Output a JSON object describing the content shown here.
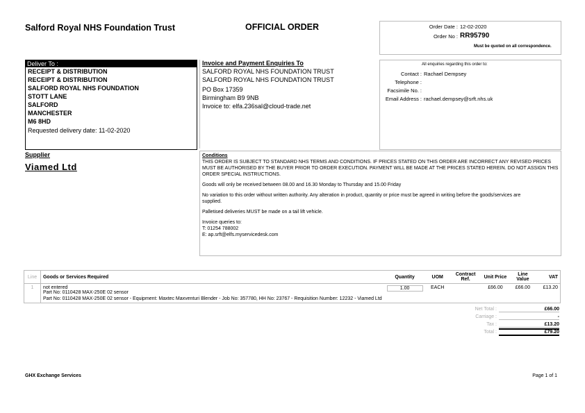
{
  "header": {
    "org_name": "Salford Royal NHS Foundation Trust",
    "doc_title": "OFFICIAL ORDER",
    "order_date_label": "Order Date :",
    "order_date": "12-02-2020",
    "order_no_label": "Order No :",
    "order_no": "RR95790",
    "order_no_note": "Must be quoted on all correspondence."
  },
  "deliver_to": {
    "heading": "Deliver To :",
    "lines": [
      "RECEIPT & DISTRIBUTION",
      "RECEIPT & DISTRIBUTION",
      "SALFORD ROYAL NHS FOUNDATION",
      "STOTT LANE",
      "SALFORD",
      "MANCHESTER",
      "M6 8HD"
    ],
    "requested_delivery": "Requested delivery date: 11-02-2020"
  },
  "invoice": {
    "heading": "Invoice and Payment Enquiries To",
    "lines": [
      "SALFORD ROYAL NHS FOUNDATION TRUST",
      "SALFORD ROYAL NHS FOUNDATION TRUST",
      "PO Box 17359",
      "Birmingham B9 9NB",
      "Invoice to: elfa.236sal@cloud-trade.net"
    ]
  },
  "enquiries": {
    "heading": "All enquiries regarding this order to:",
    "contact_label": "Contact :",
    "contact": "Rachael Dempsey",
    "telephone_label": "Telephone :",
    "telephone": "",
    "fax_label": "Facsimile No. :",
    "fax": "",
    "email_label": "Email Address :",
    "email": "rachael.dempsey@srft.nhs.uk"
  },
  "supplier": {
    "heading": "Supplier",
    "name": "Viamed Ltd"
  },
  "conditions": {
    "heading": "Conditions",
    "main": "THIS ORDER IS SUBJECT TO STANDARD NHS TERMS AND CONDITIONS. IF PRICES STATED ON THIS ORDER ARE INCORRECT ANY REVISED PRICES MUST BE AUTHORISED BY THE BUYER PRIOR TO ORDER EXECUTION. PAYMENT WILL BE MADE AT THE PRICES STATED HEREIN. DO NOT ASSIGN THIS ORDER SPECIAL INSTRUCTIONS.",
    "goods": "Goods will only be received between 08.00 and 16.30 Monday to Thursday and 15.00 Friday",
    "variation": "No variation to this order without written authority. Any alteration in product, quantity or price must be agreed in writing before the goods/services are supplied.",
    "pallets": "Palletised deliveries MUST be made on a tail lift vehicle.",
    "queries_heading": "Invoice queries to:",
    "queries_phone": "T: 01254 788002",
    "queries_email": "E: ap.srft@elfs.myservicedesk.com"
  },
  "table": {
    "columns": [
      "Line",
      "Goods or Services Required",
      "Quantity",
      "UOM",
      "Contract Ref.",
      "Unit Price",
      "Line Value",
      "VAT"
    ],
    "rows": [
      {
        "line": "1",
        "description": "not entered",
        "part": "Part No: 0110428 MAX-250E 02 sensor",
        "detail": "Part No: 0110428 MAX-250E 02 sensor - Equipment: Maxtec Maxventuri Blender - Job No: 357780, HH No: 23767 - Requisition Number: 12232 - Viamed Ltd",
        "quantity": "1.00",
        "uom": "EACH",
        "contract_ref": "",
        "unit_price": "£66.00",
        "line_value": "£66.00",
        "vat": "£13.20"
      }
    ]
  },
  "totals": {
    "net_label": "Net Total :",
    "net": "£66.00",
    "carriage_label": "Carriage :",
    "carriage": "-",
    "tax_label": "Tax :",
    "tax": "£13.20",
    "total_label": "Total :",
    "total": "£79.20"
  },
  "footer": {
    "left": "GHX Exchange Services",
    "right": "Page 1 of 1"
  }
}
